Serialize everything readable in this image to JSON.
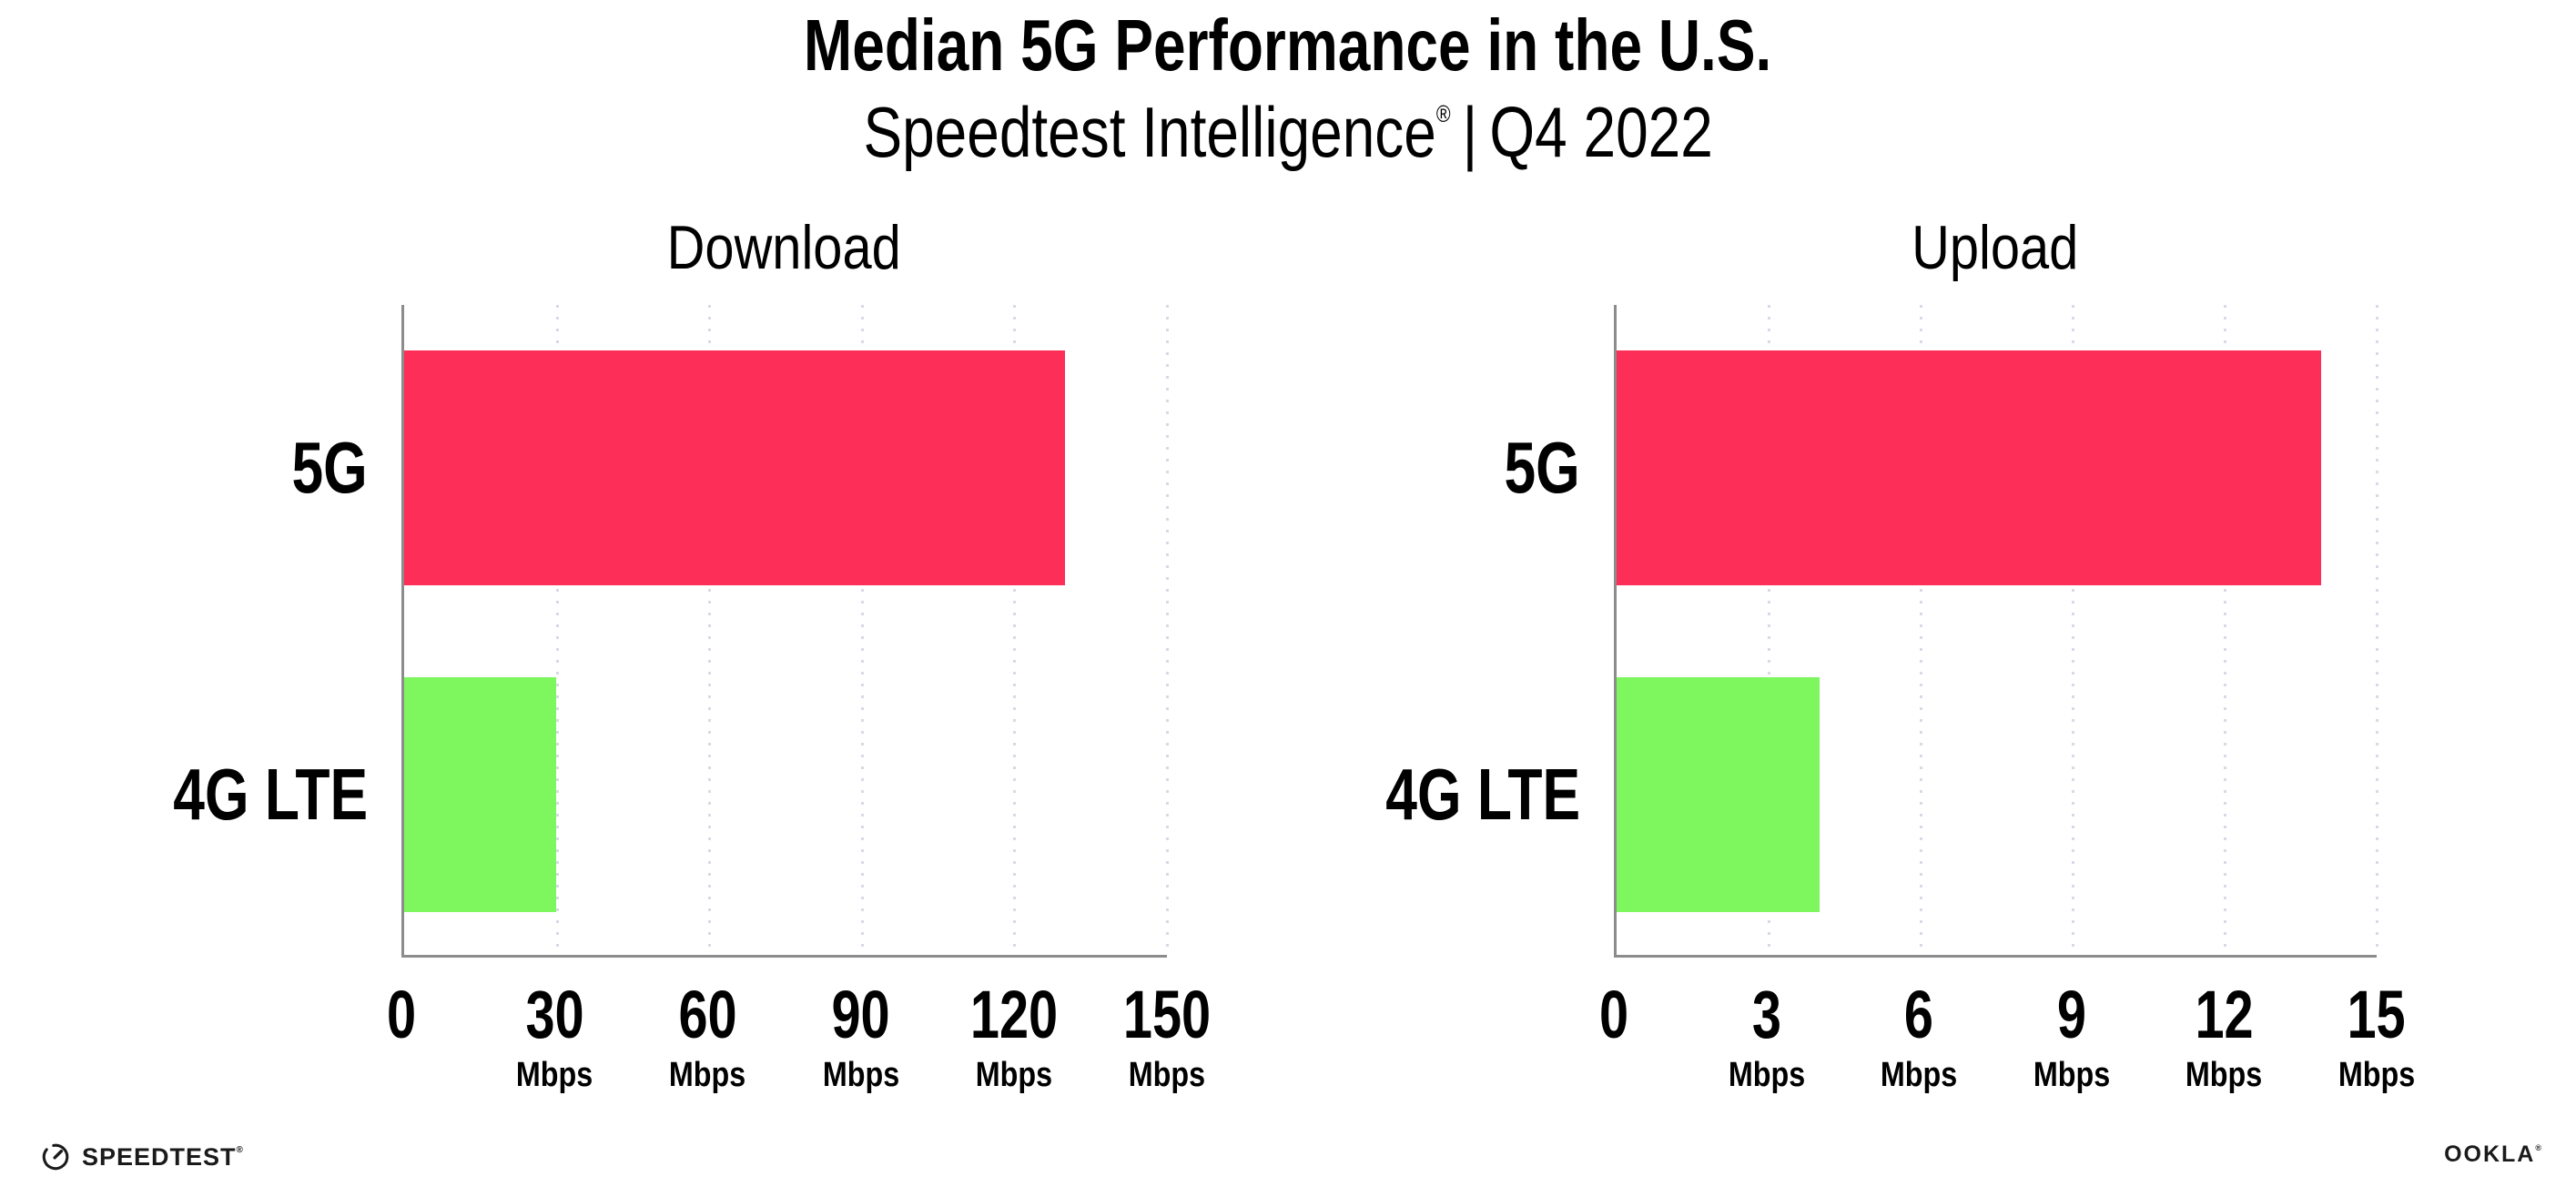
{
  "page": {
    "title": "Median 5G Performance in the U.S.",
    "subtitle_brand": "Speedtest Intelligence",
    "subtitle_reg": "®",
    "subtitle_separator": "|",
    "subtitle_period": "Q4 2022"
  },
  "colors": {
    "bar_5g": "#FD2E57",
    "bar_4g_lte": "#7EF75F",
    "axis": "#8C8C8C",
    "gridline": "#D8D9E6",
    "text": "#000000",
    "background": "#FFFFFF",
    "logo": "#1A1A1A"
  },
  "chart_data": [
    {
      "type": "bar",
      "orientation": "horizontal",
      "title": "Download",
      "categories": [
        "5G",
        "4G LTE"
      ],
      "values": [
        129.9,
        29.9
      ],
      "unit": "Mbps",
      "xlim": [
        0,
        150
      ],
      "xticks": [
        0,
        30,
        60,
        90,
        120,
        150
      ],
      "tick_unit_label": "Mbps",
      "grid": "vertical-dotted",
      "legend": "none",
      "bar_colors": [
        "#FD2E57",
        "#7EF75F"
      ]
    },
    {
      "type": "bar",
      "orientation": "horizontal",
      "title": "Upload",
      "categories": [
        "5G",
        "4G LTE"
      ],
      "values": [
        13.9,
        4.0
      ],
      "unit": "Mbps",
      "xlim": [
        0,
        15
      ],
      "xticks": [
        0,
        3,
        6,
        9,
        12,
        15
      ],
      "tick_unit_label": "Mbps",
      "grid": "vertical-dotted",
      "legend": "none",
      "bar_colors": [
        "#FD2E57",
        "#7EF75F"
      ]
    }
  ],
  "footer": {
    "speedtest_icon": "speedtest-gauge-icon",
    "speedtest_text": "SPEEDTEST",
    "speedtest_mark": "®",
    "ookla_text": "OOKLA",
    "ookla_mark": "®"
  }
}
